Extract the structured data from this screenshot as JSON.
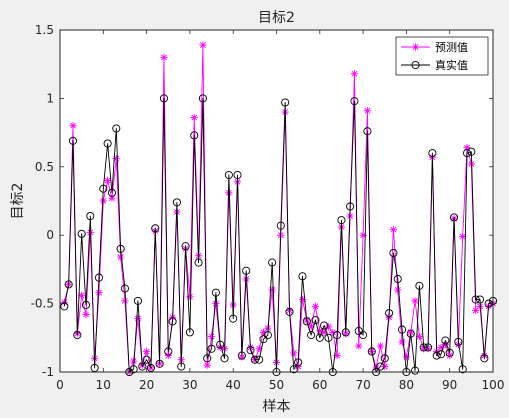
{
  "chart_data": {
    "type": "line",
    "title": "目标2",
    "xlabel": "样本",
    "ylabel": "目标2",
    "xlim": [
      0,
      100
    ],
    "ylim": [
      -1,
      1.5
    ],
    "xticks": [
      "0",
      "10",
      "20",
      "30",
      "40",
      "50",
      "60",
      "70",
      "80",
      "90",
      "100"
    ],
    "yticks": [
      "-1",
      "-0.5",
      "0",
      "0.5",
      "1",
      "1.5"
    ],
    "grid": false,
    "legend_position": "top-right",
    "series": [
      {
        "name": "预测值",
        "color": "#ff00ff",
        "marker": "star",
        "x": [
          1,
          2,
          3,
          4,
          5,
          6,
          7,
          8,
          9,
          10,
          11,
          12,
          13,
          14,
          15,
          16,
          17,
          18,
          19,
          20,
          21,
          22,
          23,
          24,
          25,
          26,
          27,
          28,
          29,
          30,
          31,
          32,
          33,
          34,
          35,
          36,
          37,
          38,
          39,
          40,
          41,
          42,
          43,
          44,
          45,
          46,
          47,
          48,
          49,
          50,
          51,
          52,
          53,
          54,
          55,
          56,
          57,
          58,
          59,
          60,
          61,
          62,
          63,
          64,
          65,
          66,
          67,
          68,
          69,
          70,
          71,
          72,
          73,
          74,
          75,
          76,
          77,
          78,
          79,
          80,
          81,
          82,
          83,
          84,
          85,
          86,
          87,
          88,
          89,
          90,
          91,
          92,
          93,
          94,
          95,
          96,
          97,
          98,
          99,
          100
        ],
        "values": [
          -0.49,
          -0.36,
          0.8,
          -0.72,
          -0.44,
          -0.58,
          0.02,
          -0.9,
          -0.42,
          0.25,
          0.4,
          0.27,
          0.56,
          -0.16,
          -0.48,
          -1.0,
          -0.92,
          -0.61,
          -0.95,
          -0.85,
          -0.97,
          0.03,
          -0.94,
          1.3,
          -0.88,
          -0.6,
          0.17,
          -0.91,
          -0.1,
          -0.45,
          0.86,
          -0.15,
          1.39,
          -0.95,
          -0.74,
          -0.5,
          -0.82,
          -0.83,
          0.31,
          -0.51,
          0.39,
          -0.89,
          -0.32,
          -0.82,
          -0.91,
          -0.83,
          -0.71,
          -0.68,
          -0.4,
          -0.93,
          0.0,
          0.9,
          -0.55,
          -0.86,
          -0.96,
          -0.47,
          -0.62,
          -0.67,
          -0.52,
          -0.7,
          -0.71,
          -0.67,
          -0.71,
          -0.88,
          0.06,
          -0.72,
          0.14,
          1.18,
          -0.81,
          0.0,
          0.91,
          -0.85,
          -0.97,
          -0.81,
          -0.96,
          -0.6,
          0.04,
          -0.4,
          -0.78,
          -0.89,
          -0.71,
          -0.48,
          -0.74,
          -0.83,
          -0.83,
          0.57,
          -0.85,
          -0.82,
          -0.8,
          -0.88,
          0.12,
          -0.8,
          -0.01,
          0.64,
          0.52,
          -0.55,
          -0.52,
          -0.88,
          -0.52,
          -0.5
        ]
      },
      {
        "name": "真实值",
        "color": "#000000",
        "marker": "circle",
        "x": [
          1,
          2,
          3,
          4,
          5,
          6,
          7,
          8,
          9,
          10,
          11,
          12,
          13,
          14,
          15,
          16,
          17,
          18,
          19,
          20,
          21,
          22,
          23,
          24,
          25,
          26,
          27,
          28,
          29,
          30,
          31,
          32,
          33,
          34,
          35,
          36,
          37,
          38,
          39,
          40,
          41,
          42,
          43,
          44,
          45,
          46,
          47,
          48,
          49,
          50,
          51,
          52,
          53,
          54,
          55,
          56,
          57,
          58,
          59,
          60,
          61,
          62,
          63,
          64,
          65,
          66,
          67,
          68,
          69,
          70,
          71,
          72,
          73,
          74,
          75,
          76,
          77,
          78,
          79,
          80,
          81,
          82,
          83,
          84,
          85,
          86,
          87,
          88,
          89,
          90,
          91,
          92,
          93,
          94,
          95,
          96,
          97,
          98,
          99,
          100
        ],
        "values": [
          -0.52,
          -0.36,
          0.69,
          -0.73,
          0.01,
          -0.51,
          0.14,
          -0.97,
          -0.31,
          0.34,
          0.67,
          0.31,
          0.78,
          -0.1,
          -0.39,
          -1.0,
          -0.98,
          -0.48,
          -0.96,
          -0.91,
          -0.97,
          0.05,
          -0.94,
          1.0,
          -0.85,
          -0.63,
          0.24,
          -0.96,
          -0.08,
          -0.71,
          0.73,
          -0.2,
          1.0,
          -0.9,
          -0.83,
          -0.42,
          -0.8,
          -0.9,
          0.44,
          -0.61,
          0.44,
          -0.88,
          -0.26,
          -0.84,
          -0.91,
          -0.91,
          -0.76,
          -0.73,
          -0.2,
          -1.0,
          0.07,
          0.97,
          -0.56,
          -0.98,
          -0.93,
          -0.3,
          -0.63,
          -0.73,
          -0.62,
          -0.75,
          -0.66,
          -0.75,
          -1.0,
          -0.73,
          0.11,
          -0.71,
          0.21,
          0.98,
          -0.7,
          -0.73,
          0.76,
          -0.85,
          -1.0,
          -0.96,
          -0.9,
          -0.57,
          -0.13,
          -0.32,
          -0.69,
          -1.0,
          -0.72,
          -0.99,
          -0.37,
          -0.82,
          -0.82,
          0.6,
          -0.88,
          -0.87,
          -0.77,
          -0.86,
          0.13,
          -0.78,
          -0.98,
          0.6,
          0.61,
          -0.47,
          -0.47,
          -0.9,
          -0.5,
          -0.48
        ]
      }
    ]
  }
}
